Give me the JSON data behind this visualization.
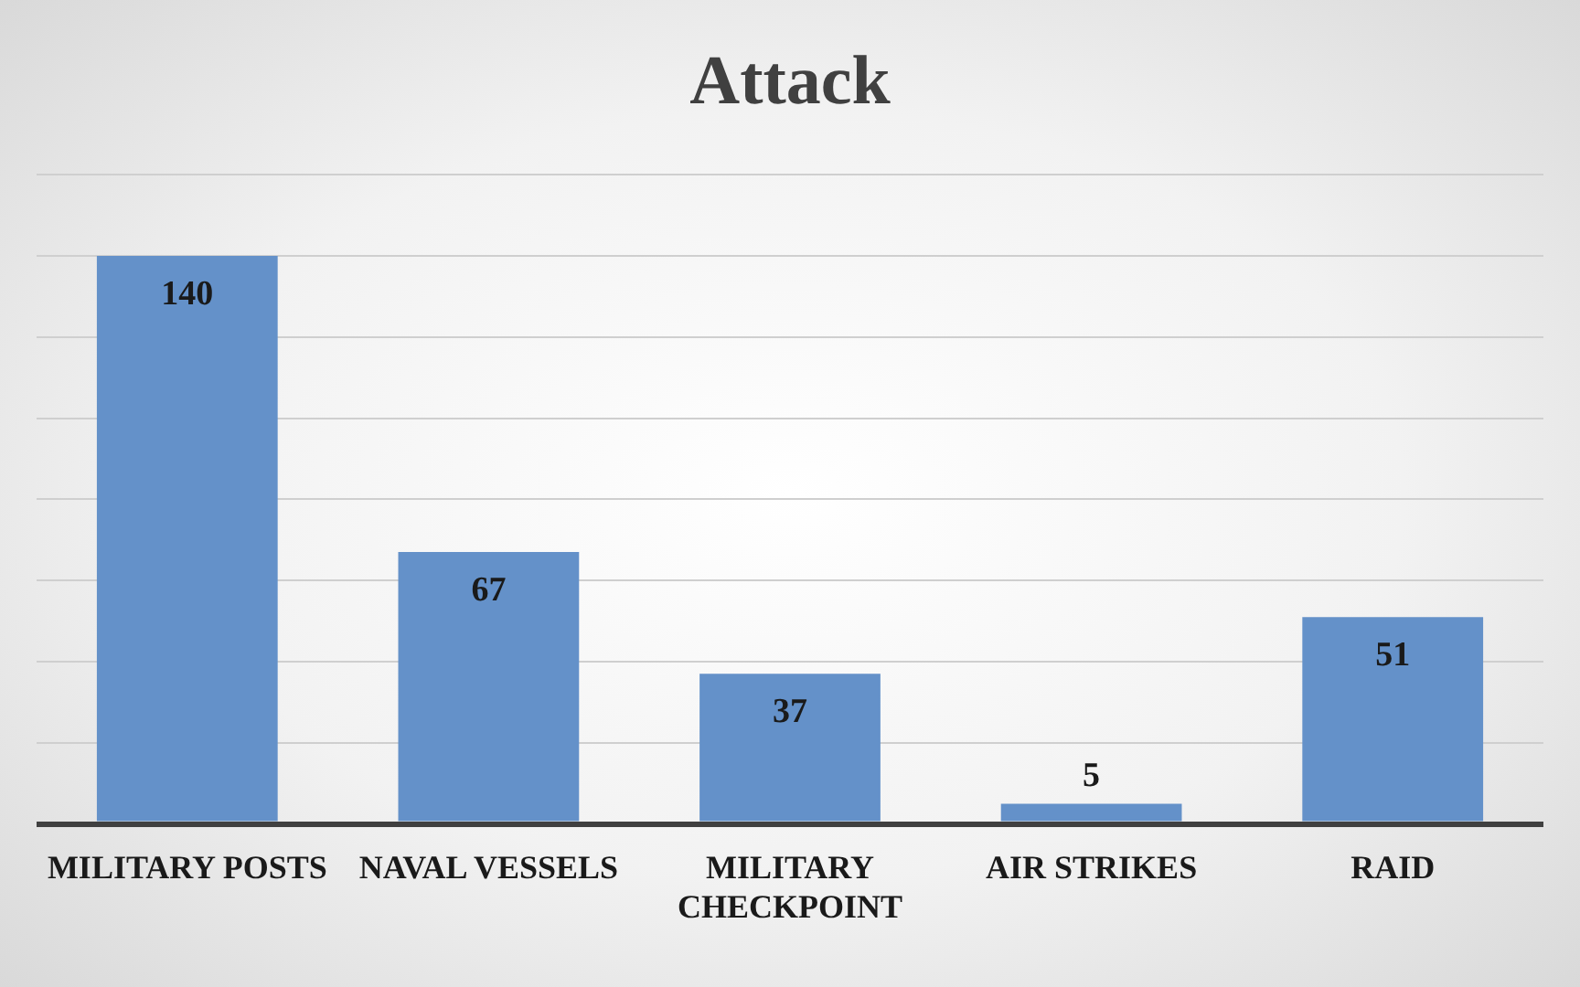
{
  "chart_data": {
    "type": "bar",
    "title": "Attack",
    "categories": [
      "MILITARY POSTS",
      "NAVAL VESSELS",
      "MILITARY CHECKPOINT",
      "AIR STRIKES",
      "RAID"
    ],
    "values": [
      140,
      67,
      37,
      5,
      51
    ],
    "color": "#6491c9",
    "grid": "y",
    "tick_labels": "x",
    "data_labels": true,
    "legend": false
  }
}
